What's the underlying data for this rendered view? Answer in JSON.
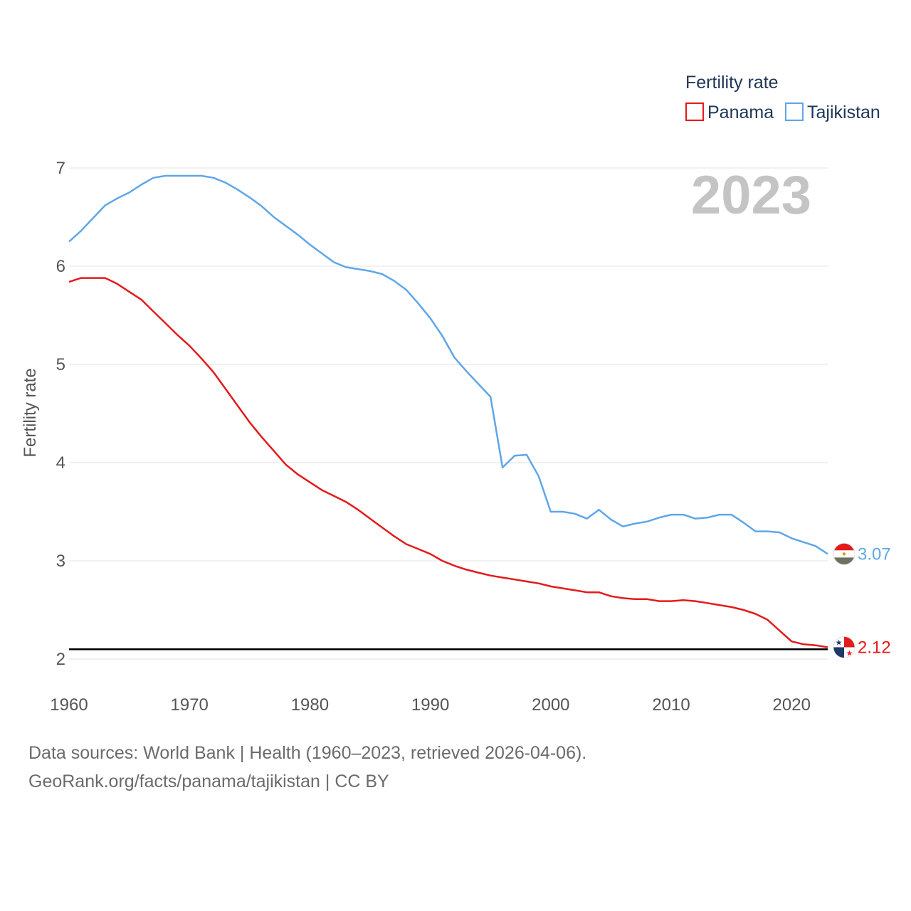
{
  "chart_data": {
    "type": "line",
    "title": "",
    "legend_title": "Fertility rate",
    "legend_position": "top-right",
    "ylabel": "Fertility rate",
    "xlabel": "",
    "year_label": "2023",
    "xlim": [
      1960,
      2023
    ],
    "ylim": [
      2,
      7
    ],
    "x_ticks": [
      1960,
      1970,
      1980,
      1990,
      2000,
      2010,
      2020
    ],
    "y_ticks": [
      2,
      3,
      4,
      5,
      6,
      7
    ],
    "grid": true,
    "reference_line": 2.1,
    "x": [
      1960,
      1961,
      1962,
      1963,
      1964,
      1965,
      1966,
      1967,
      1968,
      1969,
      1970,
      1971,
      1972,
      1973,
      1974,
      1975,
      1976,
      1977,
      1978,
      1979,
      1980,
      1981,
      1982,
      1983,
      1984,
      1985,
      1986,
      1987,
      1988,
      1989,
      1990,
      1991,
      1992,
      1993,
      1994,
      1995,
      1996,
      1997,
      1998,
      1999,
      2000,
      2001,
      2002,
      2003,
      2004,
      2005,
      2006,
      2007,
      2008,
      2009,
      2010,
      2011,
      2012,
      2013,
      2014,
      2015,
      2016,
      2017,
      2018,
      2019,
      2020,
      2021,
      2022,
      2023
    ],
    "series": [
      {
        "name": "Panama",
        "color": "#e41a1c",
        "end_label": "2.12",
        "values": [
          5.84,
          5.88,
          5.88,
          5.88,
          5.82,
          5.74,
          5.66,
          5.54,
          5.42,
          5.3,
          5.19,
          5.06,
          4.92,
          4.75,
          4.58,
          4.41,
          4.26,
          4.12,
          3.98,
          3.88,
          3.8,
          3.72,
          3.66,
          3.6,
          3.52,
          3.43,
          3.34,
          3.25,
          3.17,
          3.12,
          3.07,
          3.0,
          2.95,
          2.91,
          2.88,
          2.85,
          2.83,
          2.81,
          2.79,
          2.77,
          2.74,
          2.72,
          2.7,
          2.68,
          2.68,
          2.64,
          2.62,
          2.61,
          2.61,
          2.59,
          2.59,
          2.6,
          2.59,
          2.57,
          2.55,
          2.53,
          2.5,
          2.46,
          2.4,
          2.29,
          2.18,
          2.15,
          2.14,
          2.12
        ]
      },
      {
        "name": "Tajikistan",
        "color": "#5fa6e8",
        "end_label": "3.07",
        "values": [
          6.25,
          6.36,
          6.49,
          6.62,
          6.69,
          6.75,
          6.83,
          6.9,
          6.92,
          6.92,
          6.92,
          6.92,
          6.9,
          6.85,
          6.78,
          6.7,
          6.61,
          6.5,
          6.41,
          6.32,
          6.22,
          6.13,
          6.04,
          5.99,
          5.97,
          5.95,
          5.92,
          5.85,
          5.76,
          5.62,
          5.47,
          5.29,
          5.07,
          4.93,
          4.8,
          4.67,
          3.95,
          4.07,
          4.08,
          3.86,
          3.5,
          3.5,
          3.48,
          3.43,
          3.52,
          3.42,
          3.35,
          3.38,
          3.4,
          3.44,
          3.47,
          3.47,
          3.43,
          3.44,
          3.47,
          3.47,
          3.39,
          3.3,
          3.3,
          3.29,
          3.23,
          3.19,
          3.15,
          3.07
        ]
      }
    ]
  },
  "footer": {
    "line1": "Data sources: World Bank | Health (1960–2023, retrieved 2026-04-06).",
    "line2": "GeoRank.org/facts/panama/tajikistan | CC BY"
  }
}
